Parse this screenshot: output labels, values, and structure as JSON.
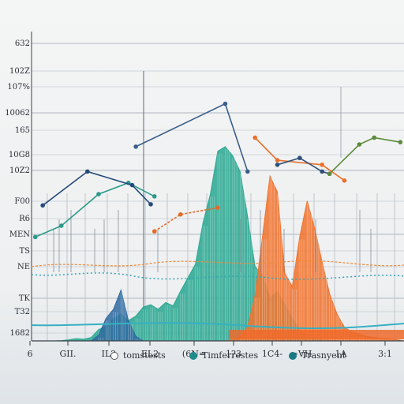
{
  "chart_data": {
    "type": "area",
    "title": "",
    "xlabel": "",
    "ylabel": "",
    "y_tick_labels": [
      "632",
      "102Z",
      "107%",
      "10062",
      "165",
      "10G8",
      "10Z2",
      "F00",
      "R6",
      "MEN",
      "TS",
      "NE",
      "TK",
      "T32",
      "1682"
    ],
    "x_tick_labels": [
      "6",
      "GII.",
      "IL2",
      "EL2",
      "(6N=",
      "1?3",
      "1C4-",
      "=VH",
      "1A",
      "3:1"
    ],
    "grid": true,
    "legend_position": "bottom",
    "legend": [
      {
        "label": "tomstests",
        "color": "#ffffff"
      },
      {
        "label": "Timferrestes",
        "color": "#1f8a8c"
      },
      {
        "label": "Trasnyent",
        "color": "#187a86"
      }
    ],
    "series": [
      {
        "color": "#2ea993",
        "x": [
          0,
          2,
          4,
          6,
          8,
          10,
          12,
          14,
          16,
          18,
          20,
          22,
          24,
          26,
          28,
          30,
          32,
          34,
          36,
          38,
          40,
          42,
          44,
          46,
          48,
          50,
          52,
          54,
          56,
          58,
          60,
          62,
          64,
          66,
          68,
          70,
          72,
          74,
          76,
          78,
          80,
          82,
          84,
          86,
          88,
          90,
          92,
          94,
          96,
          98,
          100
        ],
        "values": [
          0,
          0,
          0,
          0,
          0.3,
          1,
          2,
          1.5,
          3,
          10,
          13,
          20,
          24,
          18,
          22,
          30,
          32,
          28,
          34,
          31,
          44,
          56,
          68,
          104,
          130,
          168,
          172,
          164,
          150,
          110,
          66,
          58,
          38,
          44,
          32,
          20,
          10,
          4,
          2,
          1,
          0.5,
          0,
          0,
          0,
          0,
          0,
          0,
          0,
          0,
          0,
          0
        ]
      },
      {
        "color": "#2f6aa0",
        "x": [
          0,
          2,
          4,
          6,
          8,
          10,
          12,
          14,
          16,
          18,
          20,
          22,
          24,
          26,
          28,
          30,
          32,
          34,
          36,
          38,
          40,
          42,
          44,
          46,
          48,
          50,
          52,
          54,
          56,
          58,
          60,
          62,
          64,
          66,
          68,
          70,
          72,
          74,
          76,
          78,
          80,
          82,
          84,
          86,
          88,
          90,
          92,
          94,
          96,
          98,
          100
        ],
        "values": [
          0,
          0,
          0,
          0,
          0,
          0,
          0,
          0,
          0,
          5,
          20,
          28,
          45,
          18,
          4,
          0,
          0,
          0,
          0,
          0,
          0,
          0,
          0,
          0,
          0,
          0,
          0,
          0,
          0,
          0,
          0,
          0,
          0,
          0,
          0,
          0,
          0,
          0,
          0,
          0,
          0,
          0,
          0,
          0,
          0,
          0,
          0,
          0,
          0,
          0,
          0
        ]
      },
      {
        "color": "#ef6a2a",
        "x": [
          0,
          2,
          4,
          6,
          8,
          10,
          12,
          14,
          16,
          18,
          20,
          22,
          24,
          26,
          28,
          30,
          32,
          34,
          36,
          38,
          40,
          42,
          44,
          46,
          48,
          50,
          52,
          54,
          56,
          58,
          60,
          62,
          64,
          66,
          68,
          70,
          72,
          74,
          76,
          78,
          80,
          82,
          84,
          86,
          88,
          90,
          92,
          94,
          96,
          98,
          100
        ],
        "values": [
          0,
          0,
          0,
          0,
          0,
          0,
          0,
          0,
          0,
          0,
          0,
          0,
          0,
          0,
          0,
          0,
          0,
          0,
          0,
          0,
          0,
          0,
          0,
          0,
          0,
          0,
          0,
          0,
          0,
          0,
          0,
          0,
          0,
          0,
          0,
          0,
          0,
          0,
          0,
          0,
          0,
          0,
          0,
          0,
          0,
          0,
          0,
          0,
          0,
          0,
          0
        ]
      },
      {
        "color": "#f07532",
        "x": [
          0,
          2,
          4,
          6,
          8,
          10,
          12,
          14,
          16,
          18,
          20,
          22,
          24,
          26,
          28,
          30,
          32,
          34,
          36,
          38,
          40,
          42,
          44,
          46,
          48,
          50,
          52,
          54,
          56,
          58,
          60,
          62,
          64,
          66,
          68,
          70,
          72,
          74,
          76,
          78,
          80,
          82,
          84,
          86,
          88,
          90,
          92,
          94,
          96,
          98,
          100
        ],
        "values": [
          0,
          0,
          0,
          0,
          0,
          0,
          0,
          0,
          0,
          0,
          0,
          0,
          0,
          0,
          0,
          0,
          0,
          0,
          0,
          0,
          0,
          0,
          0,
          0,
          0,
          0,
          0,
          1,
          4,
          12,
          40,
          92,
          146,
          132,
          60,
          48,
          92,
          124,
          100,
          70,
          42,
          24,
          12,
          8,
          6,
          4,
          3,
          2,
          2,
          1,
          0
        ]
      }
    ],
    "lines": [
      {
        "color": "#2a9a8a",
        "points": [
          [
            1,
            92
          ],
          [
            8,
            102
          ],
          [
            18,
            130
          ],
          [
            26,
            140
          ],
          [
            33,
            128
          ]
        ]
      },
      {
        "color": "#234a7a",
        "points": [
          [
            3,
            120
          ],
          [
            15,
            150
          ],
          [
            27,
            138
          ],
          [
            32,
            121
          ]
        ]
      },
      {
        "color": "#3b5f8a",
        "points": [
          [
            28,
            172
          ],
          [
            52,
            210
          ],
          [
            58,
            150
          ]
        ]
      },
      {
        "color": "#e46a28",
        "points": [
          [
            33,
            97
          ],
          [
            40,
            112
          ],
          [
            50,
            118
          ]
        ]
      },
      {
        "color": "#e8702c",
        "points": [
          [
            60,
            180
          ],
          [
            66,
            160
          ],
          [
            78,
            156
          ],
          [
            84,
            142
          ]
        ]
      },
      {
        "color": "#2d4f7a",
        "points": [
          [
            66,
            156
          ],
          [
            72,
            162
          ],
          [
            78,
            150
          ],
          [
            80,
            148
          ]
        ]
      },
      {
        "color": "#5d8a3a",
        "points": [
          [
            80,
            148
          ],
          [
            88,
            174
          ],
          [
            92,
            180
          ],
          [
            99,
            176
          ]
        ]
      }
    ]
  }
}
